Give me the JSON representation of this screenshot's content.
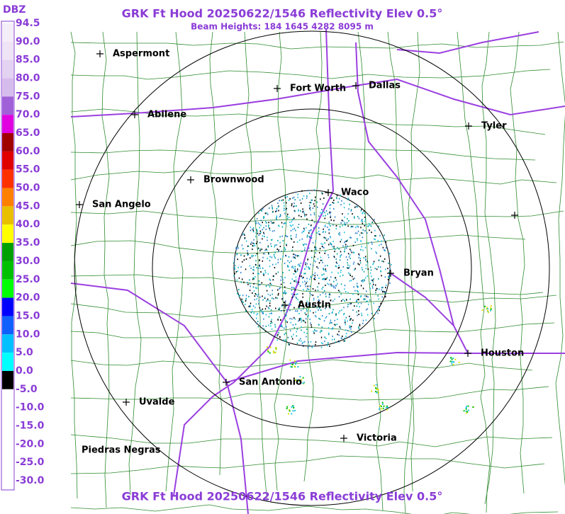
{
  "header": {
    "title": "GRK Ft Hood 20250622/1546 Reflectivity Elev 0.5°",
    "subtitle": "Beam Heights: 184 1645 4282 8095 m"
  },
  "footer": {
    "title": "GRK Ft Hood 20250622/1546 Reflectivity Elev 0.5°"
  },
  "legend": {
    "unit": "DBZ",
    "labels": [
      "94.5",
      "90.0",
      "85.0",
      "80.0",
      "75.0",
      "70.0",
      "65.0",
      "60.0",
      "55.0",
      "50.0",
      "45.0",
      "40.0",
      "35.0",
      "30.0",
      "25.0",
      "20.0",
      "15.0",
      "10.0",
      "5.0",
      "0.0",
      "-5.0",
      "-10.0",
      "-15.0",
      "-20.0",
      "-25.0",
      "-30.0"
    ]
  },
  "cities": [
    "Aspermont",
    "Abilene",
    "Fort Worth",
    "Dallas",
    "Tyler",
    "Brownwood",
    "Waco",
    "San Angelo",
    "Bryan",
    "Austin",
    "Houston",
    "San Antonio",
    "Uvalde",
    "Victoria",
    "Piedras Negras"
  ]
}
